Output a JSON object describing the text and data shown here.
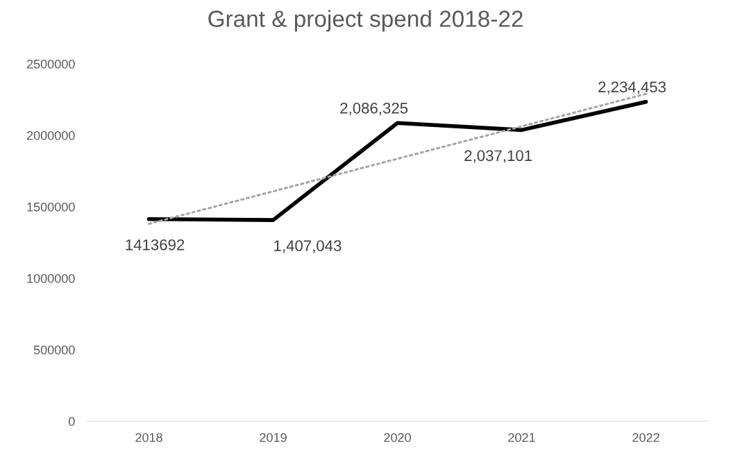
{
  "chart_data": {
    "type": "line",
    "title": "Grant & project spend 2018-22",
    "categories": [
      "2018",
      "2019",
      "2020",
      "2021",
      "2022"
    ],
    "series": [
      {
        "color": "#000000",
        "values": [
          1413692,
          1407043,
          2086325,
          2037101,
          2234453
        ],
        "value_labels": [
          "1413692",
          "1,407,043",
          "2,086,325",
          "2,037,101",
          "2,234,453"
        ],
        "line_style": "solid"
      },
      {
        "color": "#a5a5a5",
        "values": [
          1381000,
          1608000,
          1836000,
          2063000,
          2290000
        ],
        "line_style": "dotted"
      }
    ],
    "ylim": [
      0,
      2500000
    ],
    "yticks": [
      0,
      500000,
      1000000,
      1500000,
      2000000,
      2500000
    ],
    "grid": false,
    "legend": false,
    "marker": "none"
  }
}
